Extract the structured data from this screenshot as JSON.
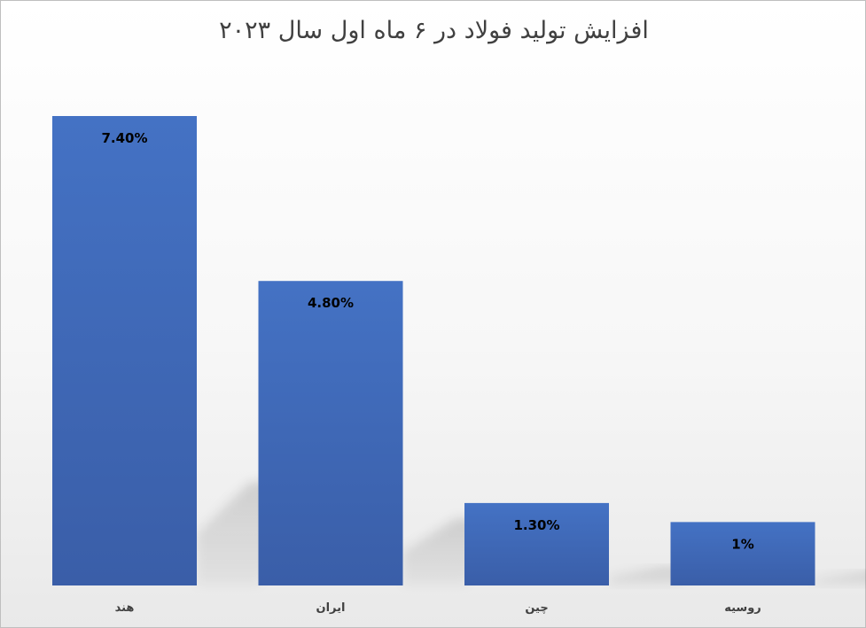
{
  "chart_data": {
    "type": "bar",
    "title": "افزایش تولید فولاد در ۶ ماه اول سال ۲۰۲۳",
    "categories": [
      "هند",
      "ایران",
      "چین",
      "روسیه"
    ],
    "values": [
      7.4,
      4.8,
      1.3,
      1.0
    ],
    "data_labels": [
      "7.40%",
      "4.80%",
      "1.30%",
      "1%"
    ],
    "unit": "%",
    "xlabel": "",
    "ylabel": "",
    "ylim": [
      0,
      7.4
    ],
    "grid": false,
    "legend": "none",
    "bar_color": "#4472c4"
  }
}
